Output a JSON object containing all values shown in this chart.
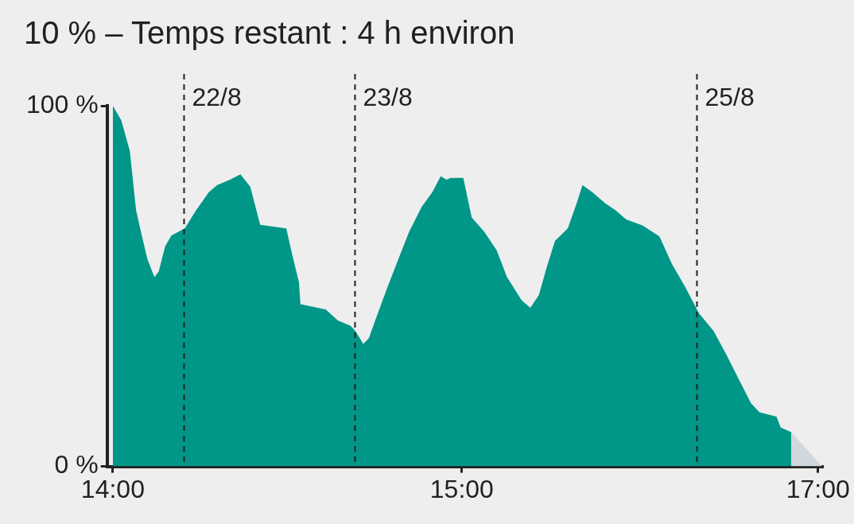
{
  "chart_data": {
    "type": "area",
    "title": "10 % – Temps restant : 4 h environ",
    "xlim": [
      "--08-21T13:12",
      "--08-25T17:35"
    ],
    "xticks": [
      {
        "value": "--08-21T14:00",
        "label": "14:00"
      },
      {
        "value": "--08-23T15:00",
        "label": "15:00"
      },
      {
        "value": "--08-25T17:00",
        "label": "17:00"
      }
    ],
    "ylim": [
      0,
      100
    ],
    "yticks": [
      {
        "value": 0,
        "label": "0 %"
      },
      {
        "value": 100,
        "label": "100 %"
      }
    ],
    "grid": false,
    "legend": false,
    "series": [
      {
        "color": "#009688",
        "x": [
          "--08-21T14:00",
          "--08-21T15:11",
          "--08-21T16:23",
          "--08-21T17:16",
          "--08-21T18:04",
          "--08-21T18:51",
          "--08-21T19:50",
          "--08-21T20:26",
          "--08-21T21:20",
          "--08-21T22:13",
          "--08-22T00:06",
          "--08-22T01:41",
          "--08-22T03:28",
          "--08-22T04:39",
          "--08-22T06:26",
          "--08-22T07:55",
          "--08-22T09:18",
          "--08-22T10:41",
          "--08-22T14:21",
          "--08-22T15:09",
          "--08-22T16:08",
          "--08-22T16:20",
          "--08-22T19:54",
          "--08-22T21:35",
          "--08-22T23:22",
          "--08-23T00:04",
          "--08-23T01:09",
          "--08-23T01:56",
          "--08-23T02:56",
          "--08-23T04:37",
          "--08-23T06:23",
          "--08-23T07:35",
          "--08-23T09:22",
          "--08-23T10:51",
          "--08-23T12:02",
          "--08-23T12:50",
          "--08-23T13:25",
          "--08-23T15:12",
          "--08-23T16:23",
          "--08-23T18:10",
          "--08-23T19:52",
          "--08-23T21:20",
          "--08-23T23:25",
          "--08-24T00:37",
          "--08-24T01:48",
          "--08-24T02:53",
          "--08-24T04:04",
          "--08-24T05:52",
          "--08-24T07:02",
          "--08-24T07:56",
          "--08-24T09:19",
          "--08-24T11:06",
          "--08-24T12:35",
          "--08-24T14:04",
          "--08-24T16:21",
          "--08-24T18:44",
          "--08-24T20:31",
          "--08-24T22:17",
          "--08-25T00:16",
          "--08-25T02:21",
          "--08-25T04:08",
          "--08-25T05:55",
          "--08-25T07:36",
          "--08-25T08:47",
          "--08-25T11:10",
          "--08-25T11:45",
          "--08-25T13:14"
        ],
        "values": [
          100,
          96,
          87.5,
          71,
          64,
          57.5,
          52.5,
          54,
          61,
          64,
          66,
          71,
          76,
          78,
          79.5,
          81,
          77.5,
          67,
          66,
          59,
          51,
          45,
          43.5,
          40.5,
          39,
          37.5,
          34,
          35.5,
          41,
          50,
          59,
          65,
          72,
          76,
          80.5,
          79.5,
          80,
          80,
          69,
          65,
          60,
          52.5,
          46,
          44,
          47.5,
          55,
          62.5,
          66,
          72.5,
          78,
          76,
          73,
          71,
          68.5,
          66.8,
          63.8,
          56,
          50,
          42.5,
          37.5,
          31,
          24,
          17.5,
          15,
          13.8,
          10.8,
          9.5
        ]
      },
      {
        "color": "#cfd8dc",
        "x": [
          "--08-25T13:14",
          "--08-25T17:35"
        ],
        "values": [
          9.5,
          0
        ]
      }
    ],
    "ref_lines": [
      {
        "axis": "x",
        "value": "--08-22",
        "label": "22/8",
        "line_style": "dashed"
      },
      {
        "axis": "x",
        "value": "--08-23",
        "label": "23/8",
        "line_style": "dashed"
      },
      {
        "axis": "x",
        "value": "--08-25",
        "label": "25/8",
        "line_style": "dashed"
      }
    ]
  }
}
